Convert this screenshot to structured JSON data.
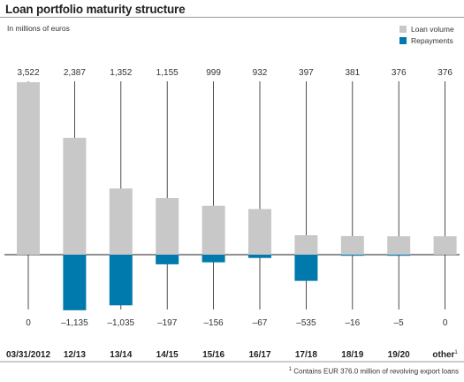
{
  "chart_data": {
    "type": "bar",
    "title": "Loan portfolio maturity structure",
    "unit_label": "In millions of euros",
    "categories": [
      "03/31/2012",
      "12/13",
      "13/14",
      "14/15",
      "15/16",
      "16/17",
      "17/18",
      "18/19",
      "19/20",
      "other"
    ],
    "category_footnote_marker": "1",
    "series": [
      {
        "name": "Loan volume",
        "color": "#c8c8c8",
        "values": [
          3522,
          2387,
          1352,
          1155,
          999,
          932,
          397,
          381,
          376,
          376
        ]
      },
      {
        "name": "Repayments",
        "color": "#0079ad",
        "values": [
          0,
          -1135,
          -1035,
          -197,
          -156,
          -67,
          -535,
          -16,
          -5,
          0
        ]
      }
    ],
    "top_labels": [
      "3,522",
      "2,387",
      "1,352",
      "1,155",
      "999",
      "932",
      "397",
      "381",
      "376",
      "376"
    ],
    "bottom_labels": [
      "0",
      "–1,135",
      "–1,035",
      "–197",
      "–156",
      "–67",
      "–535",
      "–16",
      "–5",
      "0"
    ],
    "legend_position": "top-right",
    "grid": false,
    "footnote_marker": "1",
    "footnote": "Contains EUR 376.0 million of revolving export loans"
  }
}
